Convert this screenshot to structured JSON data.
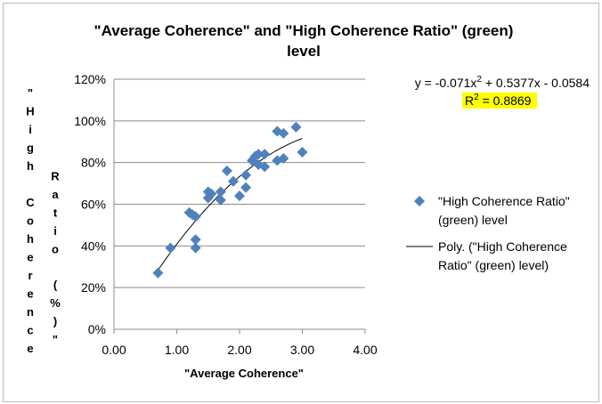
{
  "chart_data": {
    "type": "scatter",
    "title_lines": [
      "\"Average Coherence\" and \"High Coherence Ratio\" (green)",
      "level"
    ],
    "xlabel": "\"Average Coherence\"",
    "ylabel": "\"High Coherence Ratio (%)\"",
    "xlim": [
      0,
      4
    ],
    "ylim": [
      0,
      1.2
    ],
    "x_ticks": [
      "0.00",
      "1.00",
      "2.00",
      "3.00",
      "4.00"
    ],
    "y_ticks": [
      "0%",
      "20%",
      "40%",
      "60%",
      "80%",
      "100%",
      "120%"
    ],
    "grid": "horizontal",
    "legend_position": "right",
    "series": [
      {
        "name": "\"High Coherence Ratio\" (green) level",
        "marker": "diamond",
        "color": "#4f81bd",
        "points": [
          [
            0.7,
            0.27
          ],
          [
            0.9,
            0.39
          ],
          [
            1.2,
            0.56
          ],
          [
            1.25,
            0.55
          ],
          [
            1.3,
            0.54
          ],
          [
            1.3,
            0.43
          ],
          [
            1.3,
            0.39
          ],
          [
            1.5,
            0.66
          ],
          [
            1.5,
            0.63
          ],
          [
            1.55,
            0.65
          ],
          [
            1.7,
            0.62
          ],
          [
            1.7,
            0.66
          ],
          [
            1.8,
            0.76
          ],
          [
            1.9,
            0.71
          ],
          [
            2.0,
            0.64
          ],
          [
            2.1,
            0.68
          ],
          [
            2.1,
            0.74
          ],
          [
            2.2,
            0.81
          ],
          [
            2.25,
            0.83
          ],
          [
            2.3,
            0.84
          ],
          [
            2.3,
            0.79
          ],
          [
            2.4,
            0.84
          ],
          [
            2.4,
            0.78
          ],
          [
            2.6,
            0.95
          ],
          [
            2.6,
            0.81
          ],
          [
            2.7,
            0.94
          ],
          [
            2.7,
            0.82
          ],
          [
            2.9,
            0.97
          ],
          [
            3.0,
            0.85
          ]
        ]
      }
    ],
    "trendline": {
      "name": "Poly. (\"High Coherence Ratio\" (green) level)",
      "type": "polynomial",
      "coefficients": [
        -0.071,
        0.5377,
        -0.0584
      ],
      "x_range": [
        0.7,
        3.0
      ],
      "color": "#000000"
    },
    "equation": {
      "text_prefix": "y = -0.071x",
      "text_sup": "2",
      "text_suffix": " + 0.5377x - 0.0584",
      "r2_prefix": "R",
      "r2_sup": "2",
      "r2_suffix": " = 0.8869",
      "highlight_color": "#ffff00"
    },
    "legend_lines": {
      "marker": [
        "\"High Coherence Ratio\"",
        "(green) level"
      ],
      "line": [
        "Poly. (\"High Coherence",
        "Ratio\" (green) level)"
      ]
    }
  }
}
